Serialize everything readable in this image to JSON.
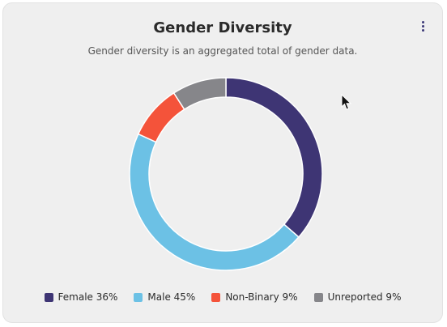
{
  "card": {
    "title": "Gender Diversity",
    "subtitle": "Gender diversity is an aggregated total of gender data.",
    "menu_icon": "kebab-menu-icon"
  },
  "chart_data": {
    "type": "pie",
    "title": "Gender Diversity",
    "categories": [
      "Female",
      "Male",
      "Non-Binary",
      "Unreported"
    ],
    "values": [
      36,
      45,
      9,
      9
    ],
    "colors": [
      "#3e3574",
      "#6cc1e5",
      "#f4533a",
      "#86868a"
    ],
    "legend": [
      {
        "label": "Female 36%",
        "color": "#3e3574"
      },
      {
        "label": "Male 45%",
        "color": "#6cc1e5"
      },
      {
        "label": "Non-Binary 9%",
        "color": "#f4533a"
      },
      {
        "label": "Unreported 9%",
        "color": "#86868a"
      }
    ],
    "legend_position": "bottom",
    "grid": false
  }
}
